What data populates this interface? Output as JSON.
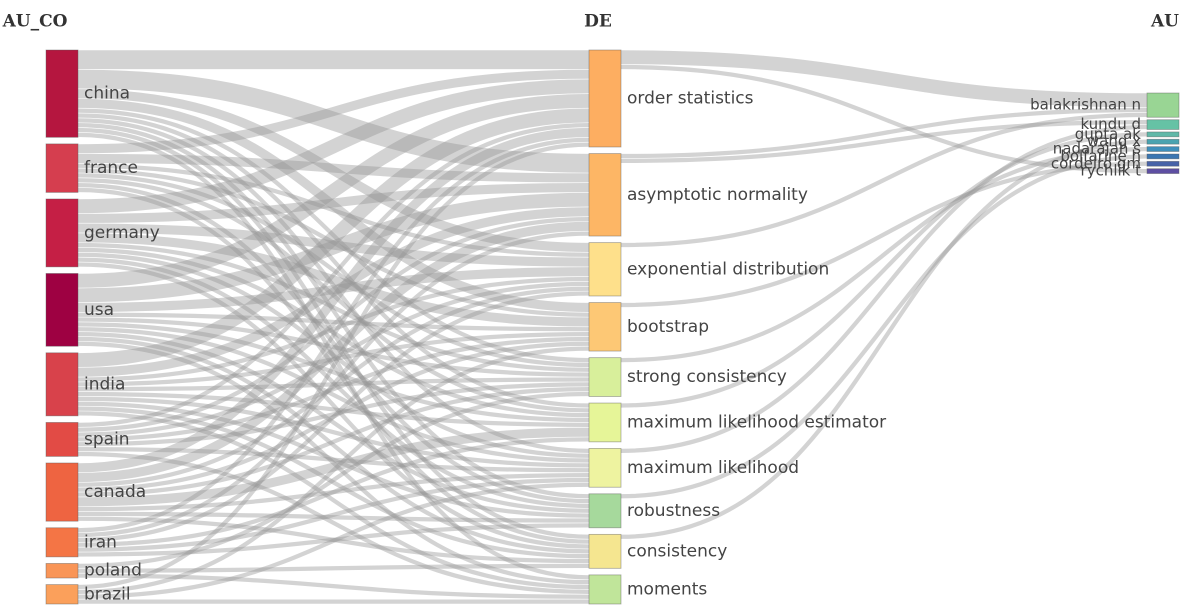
{
  "chart_data": {
    "type": "sankey",
    "columns": [
      {
        "title": "AU_CO",
        "nodes": [
          {
            "name": "china",
            "value": 18,
            "color": "#b5163f"
          },
          {
            "name": "france",
            "value": 10,
            "color": "#d53e4f"
          },
          {
            "name": "germany",
            "value": 14,
            "color": "#c51f45"
          },
          {
            "name": "usa",
            "value": 15,
            "color": "#9e0142"
          },
          {
            "name": "india",
            "value": 13,
            "color": "#d8424b"
          },
          {
            "name": "spain",
            "value": 7,
            "color": "#e24b45"
          },
          {
            "name": "canada",
            "value": 12,
            "color": "#ee6441"
          },
          {
            "name": "iran",
            "value": 6,
            "color": "#f47545"
          },
          {
            "name": "poland",
            "value": 3,
            "color": "#f99557"
          },
          {
            "name": "brazil",
            "value": 4,
            "color": "#fba05b"
          }
        ]
      },
      {
        "title": "DE",
        "nodes": [
          {
            "name": "order statistics",
            "value": 20,
            "color": "#fdae61"
          },
          {
            "name": "asymptotic normality",
            "value": 17,
            "color": "#fdb665"
          },
          {
            "name": "exponential distribution",
            "value": 11,
            "color": "#fee08b"
          },
          {
            "name": "bootstrap",
            "value": 10,
            "color": "#fdc875"
          },
          {
            "name": "strong consistency",
            "value": 8,
            "color": "#d8ef9b"
          },
          {
            "name": "maximum likelihood estimator",
            "value": 8,
            "color": "#e6f598"
          },
          {
            "name": "maximum likelihood",
            "value": 8,
            "color": "#eef3a0"
          },
          {
            "name": "robustness",
            "value": 7,
            "color": "#a6d99c"
          },
          {
            "name": "consistency",
            "value": 7,
            "color": "#f5e690"
          },
          {
            "name": "moments",
            "value": 6,
            "color": "#c0e59a"
          }
        ]
      },
      {
        "title": "AU",
        "nodes": [
          {
            "name": "balakrishnan n",
            "value": 5,
            "color": "#99d594"
          },
          {
            "name": "kundu d",
            "value": 2,
            "color": "#66c2a5"
          },
          {
            "name": "gupta ak",
            "value": 1,
            "color": "#5fb8a8"
          },
          {
            "name": "wang x",
            "value": 1,
            "color": "#4aa3b0"
          },
          {
            "name": "nadarajah s",
            "value": 1,
            "color": "#3f8fbb"
          },
          {
            "name": "bolfarine h",
            "value": 1,
            "color": "#3b76b1"
          },
          {
            "name": "cordeiro gm",
            "value": 1,
            "color": "#4762a8"
          },
          {
            "name": "rychlik t",
            "value": 1,
            "color": "#5e4fa2"
          }
        ]
      }
    ],
    "links": [
      [
        {
          "source": 0,
          "target": 0,
          "value": 4
        },
        {
          "source": 0,
          "target": 1,
          "value": 4
        },
        {
          "source": 0,
          "target": 2,
          "value": 2
        },
        {
          "source": 0,
          "target": 3,
          "value": 2
        },
        {
          "source": 0,
          "target": 4,
          "value": 1
        },
        {
          "source": 0,
          "target": 5,
          "value": 1
        },
        {
          "source": 0,
          "target": 6,
          "value": 1
        },
        {
          "source": 0,
          "target": 7,
          "value": 1
        },
        {
          "source": 0,
          "target": 8,
          "value": 1
        },
        {
          "source": 0,
          "target": 9,
          "value": 1
        },
        {
          "source": 1,
          "target": 0,
          "value": 2
        },
        {
          "source": 1,
          "target": 1,
          "value": 2
        },
        {
          "source": 1,
          "target": 2,
          "value": 1
        },
        {
          "source": 1,
          "target": 3,
          "value": 1
        },
        {
          "source": 1,
          "target": 4,
          "value": 1
        },
        {
          "source": 1,
          "target": 5,
          "value": 1
        },
        {
          "source": 1,
          "target": 7,
          "value": 1
        },
        {
          "source": 1,
          "target": 8,
          "value": 1
        },
        {
          "source": 2,
          "target": 0,
          "value": 3
        },
        {
          "source": 2,
          "target": 1,
          "value": 2
        },
        {
          "source": 2,
          "target": 2,
          "value": 2
        },
        {
          "source": 2,
          "target": 3,
          "value": 2
        },
        {
          "source": 2,
          "target": 4,
          "value": 1
        },
        {
          "source": 2,
          "target": 5,
          "value": 1
        },
        {
          "source": 2,
          "target": 6,
          "value": 1
        },
        {
          "source": 2,
          "target": 7,
          "value": 1
        },
        {
          "source": 2,
          "target": 8,
          "value": 1
        },
        {
          "source": 3,
          "target": 0,
          "value": 3
        },
        {
          "source": 3,
          "target": 1,
          "value": 3
        },
        {
          "source": 3,
          "target": 2,
          "value": 2
        },
        {
          "source": 3,
          "target": 3,
          "value": 1
        },
        {
          "source": 3,
          "target": 4,
          "value": 1
        },
        {
          "source": 3,
          "target": 5,
          "value": 1
        },
        {
          "source": 3,
          "target": 6,
          "value": 1
        },
        {
          "source": 3,
          "target": 7,
          "value": 1
        },
        {
          "source": 3,
          "target": 8,
          "value": 1
        },
        {
          "source": 3,
          "target": 9,
          "value": 1
        },
        {
          "source": 4,
          "target": 0,
          "value": 3
        },
        {
          "source": 4,
          "target": 1,
          "value": 2
        },
        {
          "source": 4,
          "target": 2,
          "value": 1
        },
        {
          "source": 4,
          "target": 3,
          "value": 1
        },
        {
          "source": 4,
          "target": 4,
          "value": 1
        },
        {
          "source": 4,
          "target": 5,
          "value": 1
        },
        {
          "source": 4,
          "target": 6,
          "value": 1
        },
        {
          "source": 4,
          "target": 7,
          "value": 1
        },
        {
          "source": 4,
          "target": 8,
          "value": 1
        },
        {
          "source": 4,
          "target": 9,
          "value": 1
        },
        {
          "source": 5,
          "target": 0,
          "value": 1
        },
        {
          "source": 5,
          "target": 1,
          "value": 1
        },
        {
          "source": 5,
          "target": 2,
          "value": 1
        },
        {
          "source": 5,
          "target": 3,
          "value": 1
        },
        {
          "source": 5,
          "target": 4,
          "value": 1
        },
        {
          "source": 5,
          "target": 6,
          "value": 1
        },
        {
          "source": 5,
          "target": 9,
          "value": 1
        },
        {
          "source": 6,
          "target": 0,
          "value": 2
        },
        {
          "source": 6,
          "target": 1,
          "value": 2
        },
        {
          "source": 6,
          "target": 2,
          "value": 1
        },
        {
          "source": 6,
          "target": 3,
          "value": 1
        },
        {
          "source": 6,
          "target": 4,
          "value": 1
        },
        {
          "source": 6,
          "target": 5,
          "value": 2
        },
        {
          "source": 6,
          "target": 6,
          "value": 1
        },
        {
          "source": 6,
          "target": 7,
          "value": 1
        },
        {
          "source": 6,
          "target": 8,
          "value": 1
        },
        {
          "source": 7,
          "target": 0,
          "value": 1
        },
        {
          "source": 7,
          "target": 1,
          "value": 1
        },
        {
          "source": 7,
          "target": 2,
          "value": 1
        },
        {
          "source": 7,
          "target": 5,
          "value": 1
        },
        {
          "source": 7,
          "target": 6,
          "value": 1
        },
        {
          "source": 7,
          "target": 7,
          "value": 1
        },
        {
          "source": 8,
          "target": 4,
          "value": 1
        },
        {
          "source": 8,
          "target": 8,
          "value": 1
        },
        {
          "source": 8,
          "target": 9,
          "value": 1
        },
        {
          "source": 9,
          "target": 0,
          "value": 1
        },
        {
          "source": 9,
          "target": 3,
          "value": 1
        },
        {
          "source": 9,
          "target": 6,
          "value": 1
        },
        {
          "source": 9,
          "target": 9,
          "value": 1
        }
      ],
      [
        {
          "source": 0,
          "target": 0,
          "value": 3
        },
        {
          "source": 0,
          "target": 7,
          "value": 1
        },
        {
          "source": 1,
          "target": 0,
          "value": 1
        },
        {
          "source": 1,
          "target": 1,
          "value": 1
        },
        {
          "source": 2,
          "target": 0,
          "value": 1
        },
        {
          "source": 3,
          "target": 6,
          "value": 1
        },
        {
          "source": 4,
          "target": 4,
          "value": 1
        },
        {
          "source": 5,
          "target": 2,
          "value": 1
        },
        {
          "source": 6,
          "target": 1,
          "value": 1
        },
        {
          "source": 7,
          "target": 5,
          "value": 1
        },
        {
          "source": 8,
          "target": 3,
          "value": 1
        }
      ]
    ]
  }
}
